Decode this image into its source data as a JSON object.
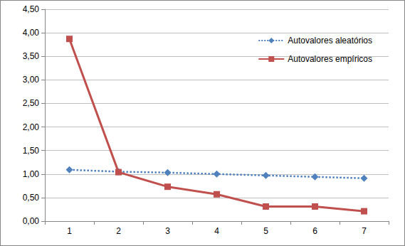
{
  "chart_data": {
    "type": "line",
    "categories": [
      "1",
      "2",
      "3",
      "4",
      "5",
      "6",
      "7"
    ],
    "series": [
      {
        "name": "Autovalores aleatórios",
        "color": "#4f81bd",
        "marker": "diamond",
        "line_style": "dotted",
        "values": [
          1.09,
          1.05,
          1.03,
          1.0,
          0.97,
          0.94,
          0.91
        ]
      },
      {
        "name": "Autovalores empíricos",
        "color": "#c0504d",
        "marker": "square",
        "line_style": "solid",
        "values": [
          3.87,
          1.04,
          0.73,
          0.57,
          0.31,
          0.31,
          0.21
        ]
      }
    ],
    "ylim": [
      0,
      4.5
    ],
    "yticks": [
      {
        "value": 0,
        "label": "0,00"
      },
      {
        "value": 0.5,
        "label": "0,50"
      },
      {
        "value": 1,
        "label": "1,00"
      },
      {
        "value": 1.5,
        "label": "1,50"
      },
      {
        "value": 2,
        "label": "2,00"
      },
      {
        "value": 2.5,
        "label": "2,50"
      },
      {
        "value": 3,
        "label": "3,00"
      },
      {
        "value": 3.5,
        "label": "3,50"
      },
      {
        "value": 4,
        "label": "4,00"
      },
      {
        "value": 4.5,
        "label": "4,50"
      }
    ],
    "grid": true,
    "legend": "upper right"
  }
}
